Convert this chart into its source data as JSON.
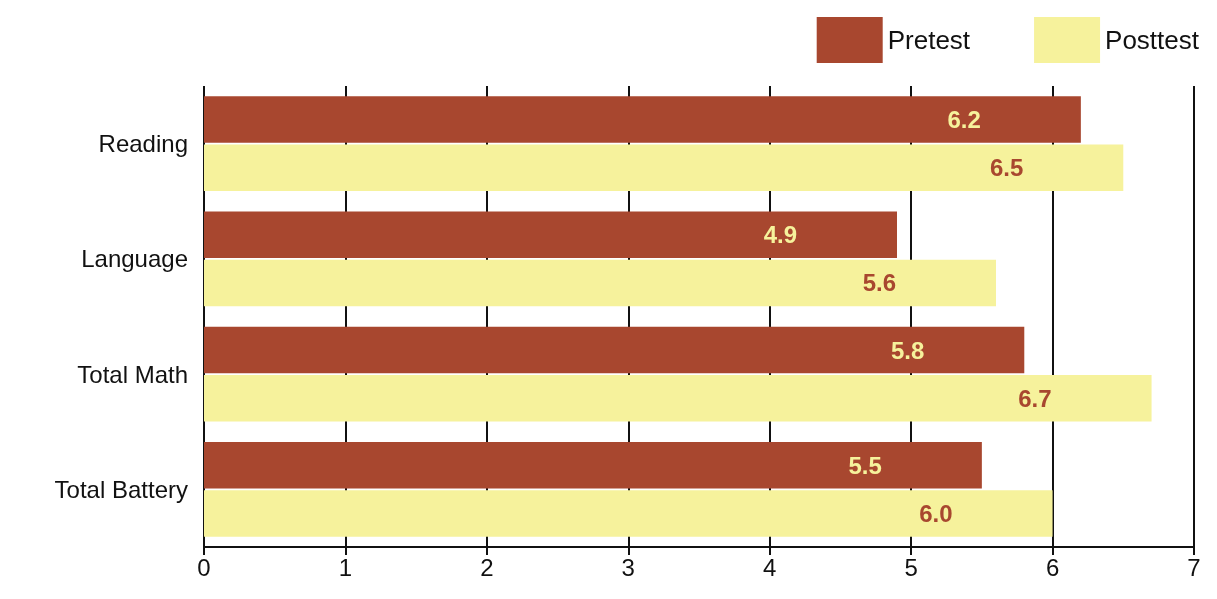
{
  "chart_data": {
    "type": "bar",
    "orientation": "horizontal",
    "categories": [
      "Reading",
      "Language",
      "Total Math",
      "Total Battery"
    ],
    "series": [
      {
        "name": "Pretest",
        "color": "#a8472f",
        "values": [
          6.2,
          4.9,
          5.8,
          5.5
        ],
        "value_labels": [
          "6.2",
          "4.9",
          "5.8",
          "5.5"
        ]
      },
      {
        "name": "Posttest",
        "color": "#f6f29c",
        "values": [
          6.5,
          5.6,
          6.7,
          6.0
        ],
        "value_labels": [
          "6.5",
          "5.6",
          "6.7",
          "6.0"
        ]
      }
    ],
    "xlim": [
      0,
      7
    ],
    "xticks": [
      0,
      1,
      2,
      3,
      4,
      5,
      6,
      7
    ],
    "grid": "x",
    "legend": "top right"
  }
}
